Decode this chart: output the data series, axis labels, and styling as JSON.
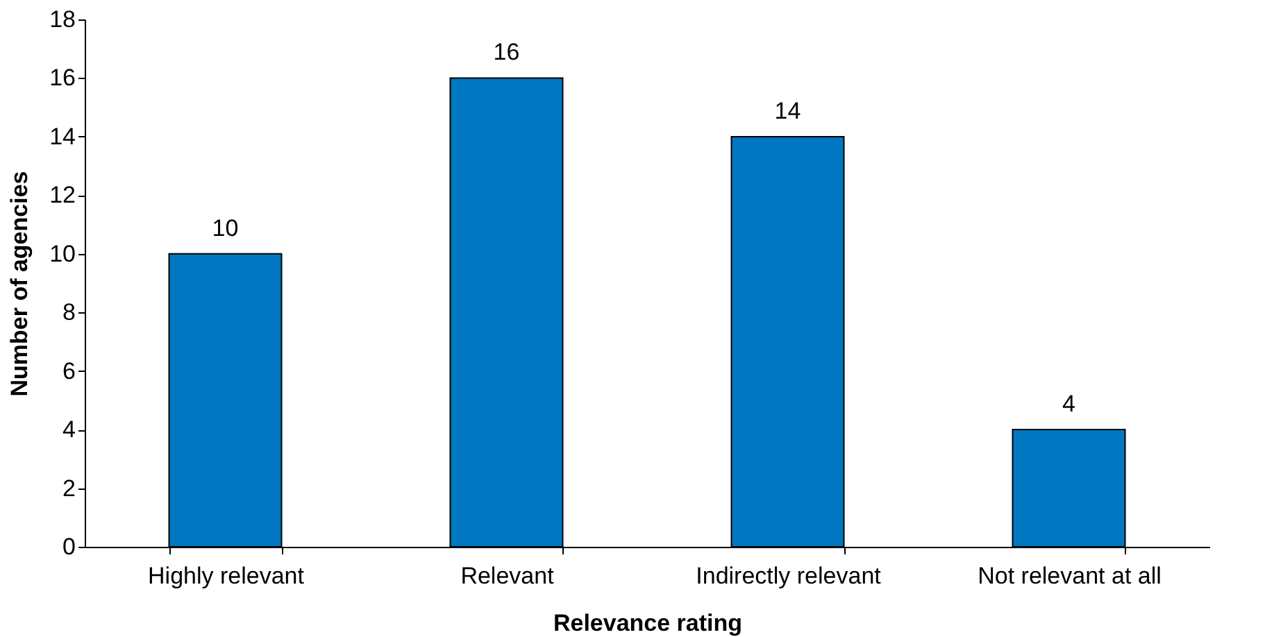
{
  "chart_data": {
    "type": "bar",
    "xlabel": "Relevance rating",
    "ylabel": "Number of agencies",
    "categories": [
      "Highly relevant",
      "Relevant",
      "Indirectly relevant",
      "Not relevant at all"
    ],
    "values": [
      10,
      16,
      14,
      4
    ],
    "color": "#0077c0",
    "ylim": [
      0,
      18
    ],
    "yticks": [
      0,
      2,
      4,
      6,
      8,
      10,
      12,
      14,
      16,
      18
    ],
    "grid": false,
    "data_labels": true
  }
}
